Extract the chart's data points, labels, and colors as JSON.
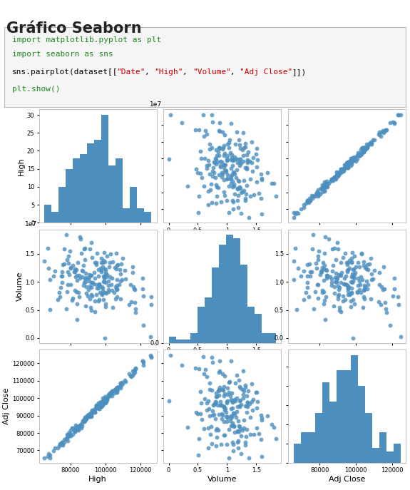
{
  "title": "Gráfico Seaborn",
  "code_lines_green": [
    "import matplotlib.pyplot as plt",
    "import seaborn as sns",
    "plt.show()"
  ],
  "code_line_mixed": "sns.pairplot(dataset[[\"Date\", \"High\", \"Volume\", \"Adj Close\"]])",
  "code_mixed_parts": [
    [
      "sns.pairplot(dataset[[",
      "#000000"
    ],
    [
      "\"Date\"",
      "#CC0000"
    ],
    [
      ", ",
      "#000000"
    ],
    [
      "\"High\"",
      "#CC0000"
    ],
    [
      ", ",
      "#000000"
    ],
    [
      "\"Volume\"",
      "#CC0000"
    ],
    [
      ", ",
      "#000000"
    ],
    [
      "\"Adj Close\"",
      "#CC0000"
    ],
    [
      "]])",
      "#000000"
    ]
  ],
  "code_box_bg": "#f5f5f5",
  "code_box_border": "#bbbbbb",
  "columns": [
    "High",
    "Volume",
    "Adj Close"
  ],
  "scatter_color": "#4C8FBF",
  "hist_color": "#4C8FBF",
  "scatter_alpha": 0.8,
  "scatter_size": 18,
  "n_points": 200,
  "seed": 42,
  "high_mean": 95000,
  "high_std": 14000,
  "high_min": 65000,
  "high_max": 126000,
  "volume_mean": 10500000.0,
  "volume_std": 2800000.0,
  "volume_min": 0,
  "volume_max": 19500000.0,
  "title_fontsize": 15,
  "title_fontweight": "bold",
  "bg_color": "#ffffff",
  "code_fontsize": 8.0,
  "green_color": "#228822",
  "black_color": "#000000",
  "red_color": "#CC2200"
}
